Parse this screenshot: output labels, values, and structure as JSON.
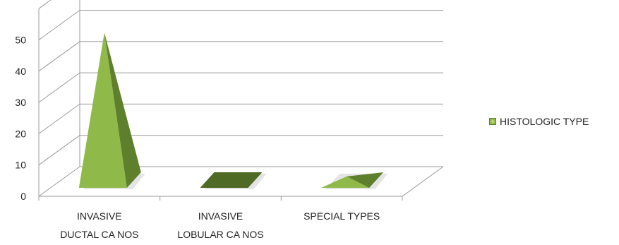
{
  "chart_data": {
    "type": "bar",
    "bar_shape": "pyramid",
    "style": "3d",
    "categories": [
      "INVASIVE DUCTAL CA NOS",
      "INVASIVE LOBULAR CA NOS",
      "SPECIAL TYPES"
    ],
    "category_lines": [
      [
        "INVASIVE",
        "DUCTAL CA NOS"
      ],
      [
        "INVASIVE",
        "LOBULAR CA NOS"
      ],
      [
        "SPECIAL TYPES"
      ]
    ],
    "series": [
      {
        "name": "HISTOLOGIC TYPE",
        "values": [
          51,
          0,
          5
        ]
      }
    ],
    "yticks": [
      "0",
      "10",
      "20",
      "30",
      "40",
      "50"
    ],
    "ylim": [
      0,
      60
    ],
    "grid": true,
    "legend_position": "right",
    "colors": {
      "face_light": "#8fba4a",
      "face_dark": "#5e7f2c",
      "floor": "#4e6a24",
      "shadow": "#c9c9c9",
      "grid": "#9a9a9a"
    }
  }
}
